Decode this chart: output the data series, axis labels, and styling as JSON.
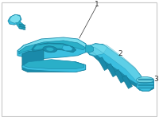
{
  "bg_color": "#ffffff",
  "border_color": "#c8c8c8",
  "part_color": "#3bbfe0",
  "part_color_dark": "#1a8aaa",
  "part_color_mid": "#2aafc8",
  "shadow_color": "#157890",
  "highlight_color": "#7adeee",
  "label_color": "#333333",
  "fig_width": 2.0,
  "fig_height": 1.47,
  "dpi": 100
}
